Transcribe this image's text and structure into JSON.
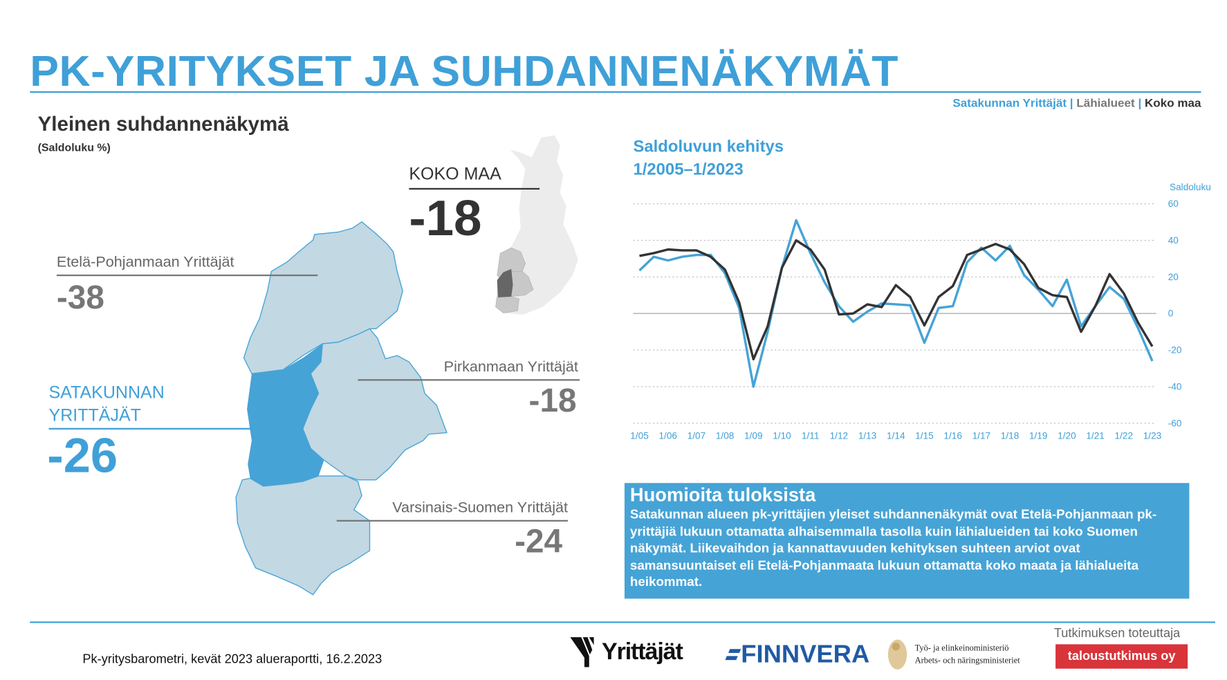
{
  "title": "PK-YRITYKSET JA SUHDANNENÄKYMÄT",
  "legend": {
    "item1": "Satakunnan Yrittäjät",
    "sep": "|",
    "item2": "Lähialueet",
    "item3": "Koko maa"
  },
  "colors": {
    "accent": "#3fa0d8",
    "satakunta": "#46a3d6",
    "koko_maa": "#333333",
    "neighbour": "#c2d8e3"
  },
  "left": {
    "heading": "Yleinen suhdannenäkymä",
    "subheading": "(Saldoluku %)",
    "koko_maa": {
      "label": "KOKO MAA",
      "value": "-18"
    },
    "etela_pohjanmaa": {
      "label": "Etelä-Pohjanmaan Yrittäjät",
      "value": "-38"
    },
    "satakunta": {
      "label1": "SATAKUNNAN",
      "label2": "YRITTÄJÄT",
      "value": "-26"
    },
    "pirkanmaa": {
      "label": "Pirkanmaan Yrittäjät",
      "value": "-18"
    },
    "varsinais_suomi": {
      "label": "Varsinais-Suomen Yrittäjät",
      "value": "-24"
    }
  },
  "chart_title1": "Saldoluvun kehitys",
  "chart_title2": "1/2005–1/2023",
  "chart_data": {
    "type": "line",
    "title": "Saldoluvun kehitys 1/2005–1/2023",
    "ylabel": "Saldoluku",
    "ylim": [
      -60,
      60
    ],
    "yticks": [
      "60",
      "40",
      "20",
      "0",
      "-20",
      "-40",
      "-60"
    ],
    "xticks": [
      "1/05",
      "1/06",
      "1/07",
      "1/08",
      "1/09",
      "1/10",
      "1/11",
      "1/12",
      "1/13",
      "1/14",
      "1/15",
      "1/16",
      "1/17",
      "1/18",
      "1/19",
      "1/20",
      "1/21",
      "1/22",
      "1/23"
    ],
    "grid": true,
    "series": [
      {
        "name": "Satakunnan Yrittäjät",
        "color": "#46a3d6",
        "values": [
          23.5,
          31,
          29,
          31,
          32,
          32,
          22,
          3,
          -40,
          -10,
          25,
          51,
          33,
          17,
          4,
          -4.5,
          1,
          5.5,
          5,
          4.5,
          -16,
          3,
          4,
          28,
          36,
          29,
          37,
          21,
          13,
          4,
          18.5,
          -7,
          4,
          14.5,
          8,
          -8,
          -26
        ]
      },
      {
        "name": "Koko maa",
        "color": "#333333",
        "values": [
          31.5,
          33,
          35,
          34.5,
          34.5,
          31,
          24,
          6,
          -25,
          -7,
          25,
          40,
          35,
          24,
          -0.5,
          0,
          5,
          3.5,
          15.5,
          9,
          -6.5,
          9,
          15,
          32,
          35,
          38,
          35,
          27,
          14,
          10,
          9,
          -10,
          4,
          21.5,
          11,
          -5,
          -18
        ]
      }
    ]
  },
  "notes": {
    "heading": "Huomioita tuloksista",
    "body": "Satakunnan alueen pk-yrittäjien yleiset suhdannenäkymät ovat Etelä-Pohjanmaan pk-yrittäjiä lukuun ottamatta alhaisemmalla tasolla kuin lähialueiden tai koko Suomen näkymät. Liikevaihdon ja kannattavuuden kehityksen suhteen arviot ovat samansuuntaiset eli Etelä-Pohjanmaata lukuun ottamatta koko maata ja lähialueita heikommat."
  },
  "footer": {
    "source": "Pk-yritysbarometri, kevät 2023 alueraportti, 16.2.2023",
    "logo_yrittajat": "Yrittäjät",
    "logo_finnvera": "FINNVERA",
    "logo_tem1": "Työ- ja elinkeinoministeriö",
    "logo_tem2": "Arbets- och näringsministeriet",
    "producer_label": "Tutkimuksen toteuttaja",
    "producer": "taloustutkimus oy"
  }
}
